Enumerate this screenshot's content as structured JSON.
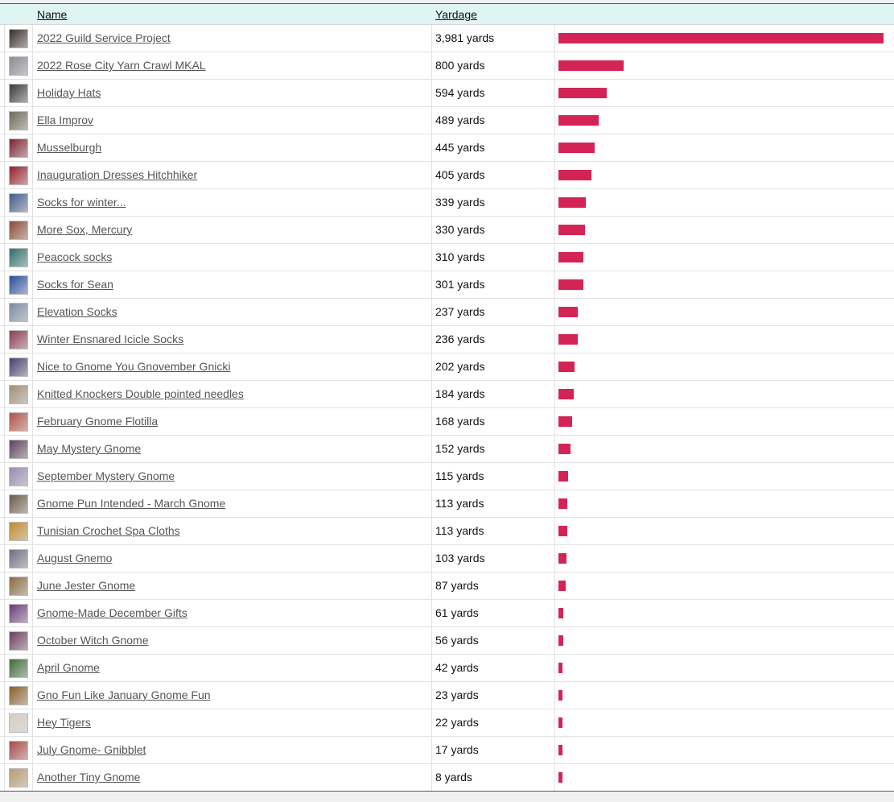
{
  "header": {
    "name_label": "Name",
    "yardage_label": "Yardage"
  },
  "bar_color": "#d42456",
  "max_yards": 3981,
  "rows": [
    {
      "name": "2022 Guild Service Project",
      "yardage": "3,981 yards",
      "value": 3981,
      "thumb": "#3a2e2a",
      "icon": "project-photo-icon"
    },
    {
      "name": "2022 Rose City Yarn Crawl MKAL",
      "yardage": "800 yards",
      "value": 800,
      "thumb": "#8d8a93",
      "icon": "project-photo-icon"
    },
    {
      "name": "Holiday Hats",
      "yardage": "594 yards",
      "value": 594,
      "thumb": "#3b3b3b",
      "icon": "project-photo-icon"
    },
    {
      "name": "Ella Improv",
      "yardage": "489 yards",
      "value": 489,
      "thumb": "#6d6a58",
      "icon": "project-photo-icon"
    },
    {
      "name": "Musselburgh",
      "yardage": "445 yards",
      "value": 445,
      "thumb": "#7e2430",
      "icon": "project-photo-icon"
    },
    {
      "name": "Inauguration Dresses Hitchhiker",
      "yardage": "405 yards",
      "value": 405,
      "thumb": "#9c1c27",
      "icon": "project-photo-icon"
    },
    {
      "name": "Socks for winter...",
      "yardage": "339 yards",
      "value": 339,
      "thumb": "#405c8d",
      "icon": "project-photo-icon"
    },
    {
      "name": "More Sox, Mercury",
      "yardage": "330 yards",
      "value": 330,
      "thumb": "#8a4a34",
      "icon": "project-photo-icon"
    },
    {
      "name": "Peacock socks",
      "yardage": "310 yards",
      "value": 310,
      "thumb": "#2f6e6a",
      "icon": "project-photo-icon"
    },
    {
      "name": "Socks for Sean",
      "yardage": "301 yards",
      "value": 301,
      "thumb": "#2b4ea0",
      "icon": "project-photo-icon"
    },
    {
      "name": "Elevation Socks",
      "yardage": "237 yards",
      "value": 237,
      "thumb": "#7c8ca0",
      "icon": "project-photo-icon"
    },
    {
      "name": "Winter Ensnared Icicle Socks",
      "yardage": "236 yards",
      "value": 236,
      "thumb": "#8e3c52",
      "icon": "project-photo-icon"
    },
    {
      "name": "Nice to Gnome You Gnovember Gnicki",
      "yardage": "202 yards",
      "value": 202,
      "thumb": "#4b3f6e",
      "icon": "project-photo-icon"
    },
    {
      "name": "Knitted Knockers Double pointed needles",
      "yardage": "184 yards",
      "value": 184,
      "thumb": "#a38e78",
      "icon": "project-photo-icon"
    },
    {
      "name": "February Gnome Flotilla",
      "yardage": "168 yards",
      "value": 168,
      "thumb": "#b25049",
      "icon": "project-photo-icon"
    },
    {
      "name": "May Mystery Gnome",
      "yardage": "152 yards",
      "value": 152,
      "thumb": "#5c4058",
      "icon": "project-photo-icon"
    },
    {
      "name": "September Mystery Gnome",
      "yardage": "115 yards",
      "value": 115,
      "thumb": "#9c8ab0",
      "icon": "project-photo-icon"
    },
    {
      "name": "Gnome Pun Intended - March Gnome",
      "yardage": "113 yards",
      "value": 113,
      "thumb": "#6a5a48",
      "icon": "project-photo-icon"
    },
    {
      "name": "Tunisian Crochet Spa Cloths",
      "yardage": "113 yards",
      "value": 113,
      "thumb": "#c08a2e",
      "icon": "project-photo-icon"
    },
    {
      "name": "August Gnemo",
      "yardage": "103 yards",
      "value": 103,
      "thumb": "#6e7082",
      "icon": "project-photo-icon"
    },
    {
      "name": "June Jester Gnome",
      "yardage": "87 yards",
      "value": 87,
      "thumb": "#8a6a3e",
      "icon": "project-photo-icon"
    },
    {
      "name": "Gnome-Made December Gifts",
      "yardage": "61 yards",
      "value": 61,
      "thumb": "#6a3c7a",
      "icon": "project-photo-icon"
    },
    {
      "name": "October Witch Gnome",
      "yardage": "56 yards",
      "value": 56,
      "thumb": "#6c3c5a",
      "icon": "project-photo-icon"
    },
    {
      "name": "April Gnome",
      "yardage": "42 yards",
      "value": 42,
      "thumb": "#3f6a3a",
      "icon": "project-photo-icon"
    },
    {
      "name": "Gno Fun Like January Gnome Fun",
      "yardage": "23 yards",
      "value": 23,
      "thumb": "#8a6028",
      "icon": "project-photo-icon"
    },
    {
      "name": "Hey Tigers",
      "yardage": "22 yards",
      "value": 22,
      "thumb": "#d8cfc4",
      "icon": "project-photo-icon"
    },
    {
      "name": "July Gnome- Gnibblet",
      "yardage": "17 yards",
      "value": 17,
      "thumb": "#a84a48",
      "icon": "project-photo-icon"
    },
    {
      "name": "Another Tiny Gnome",
      "yardage": "8 yards",
      "value": 8,
      "thumb": "#b89a72",
      "icon": "project-photo-icon"
    }
  ]
}
